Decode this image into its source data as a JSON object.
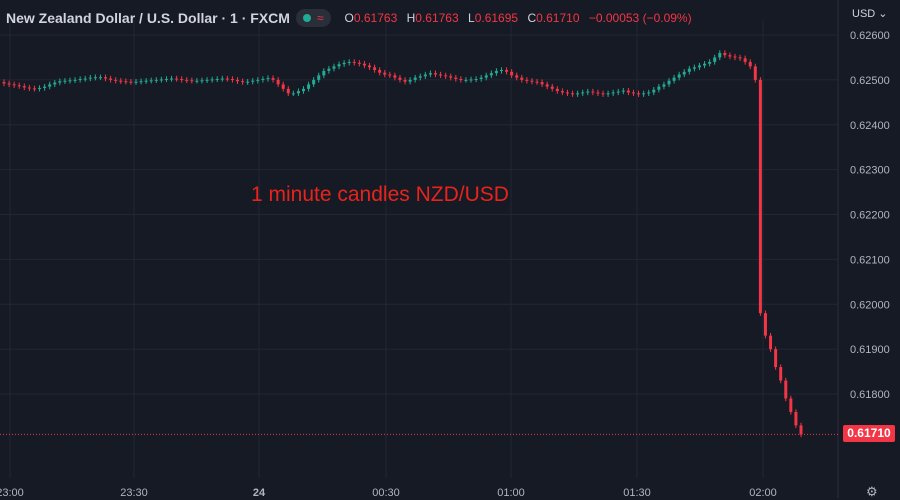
{
  "legend": {
    "title": "New Zealand Dollar / U.S. Dollar · 1 · FXCM",
    "market_status_icon": "green-dot-icon",
    "wave_icon": "≈",
    "ohlc": {
      "o_label": "O",
      "o_value": "0.61763",
      "h_label": "H",
      "h_value": "0.61763",
      "l_label": "L",
      "l_value": "0.61695",
      "c_label": "C",
      "c_value": "0.61710",
      "change": "−0.00053 (−0.09%)"
    }
  },
  "currency_selector": "USD ⌄",
  "annotation": "1 minute candles NZD/USD",
  "last_price_badge": "0.61710",
  "colors": {
    "up": "#22ab94",
    "down": "#f23645",
    "background": "#161a25",
    "annotation": "#e8231c",
    "grid": "#232733"
  },
  "chart_data": {
    "type": "candlestick",
    "interval": "1 minute",
    "symbol": "NZD/USD",
    "ylim": [
      0.617,
      0.6261
    ],
    "y_ticks": [
      "0.62600",
      "0.62500",
      "0.62400",
      "0.62300",
      "0.62200",
      "0.62100",
      "0.62000",
      "0.61900",
      "0.61800"
    ],
    "x_ticks": [
      "23:00",
      "23:30",
      "24",
      "00:30",
      "01:00",
      "01:30",
      "02:00"
    ],
    "last_price": 0.6171,
    "candles_close_path": [
      0.62492,
      0.6249,
      0.62488,
      0.62486,
      0.62483,
      0.62481,
      0.6248,
      0.62482,
      0.62485,
      0.6249,
      0.62494,
      0.62497,
      0.62498,
      0.62499,
      0.625,
      0.62502,
      0.62503,
      0.62505,
      0.62506,
      0.62506,
      0.62503,
      0.625,
      0.62498,
      0.62497,
      0.62496,
      0.62495,
      0.62496,
      0.62497,
      0.62498,
      0.62499,
      0.625,
      0.62501,
      0.62502,
      0.62503,
      0.62502,
      0.625,
      0.62499,
      0.62498,
      0.62498,
      0.62499,
      0.625,
      0.62501,
      0.62502,
      0.62503,
      0.62502,
      0.625,
      0.62497,
      0.62495,
      0.62496,
      0.62498,
      0.625,
      0.62502,
      0.62504,
      0.625,
      0.6249,
      0.6248,
      0.6247,
      0.6247,
      0.62475,
      0.6248,
      0.6249,
      0.625,
      0.6251,
      0.6252,
      0.62525,
      0.6253,
      0.62535,
      0.62538,
      0.6254,
      0.62538,
      0.62536,
      0.62532,
      0.62528,
      0.62522,
      0.62516,
      0.62512,
      0.6251,
      0.62505,
      0.625,
      0.62496,
      0.625,
      0.62505,
      0.62508,
      0.62512,
      0.62515,
      0.62512,
      0.6251,
      0.62508,
      0.62505,
      0.62502,
      0.625,
      0.625,
      0.62501,
      0.62502,
      0.62505,
      0.6251,
      0.62515,
      0.6252,
      0.62522,
      0.62518,
      0.6251,
      0.62505,
      0.625,
      0.62498,
      0.62496,
      0.62495,
      0.6249,
      0.62485,
      0.6248,
      0.62475,
      0.62472,
      0.6247,
      0.62468,
      0.6247,
      0.62472,
      0.62474,
      0.62472,
      0.6247,
      0.62468,
      0.6247,
      0.62472,
      0.62474,
      0.62476,
      0.62472,
      0.6247,
      0.62468,
      0.6247,
      0.62472,
      0.62478,
      0.62485,
      0.6249,
      0.62498,
      0.62505,
      0.62512,
      0.62518,
      0.62525,
      0.62528,
      0.62532,
      0.62536,
      0.6254,
      0.6255,
      0.6256,
      0.62555,
      0.62552,
      0.6255,
      0.62548,
      0.6254,
      0.6253,
      0.625,
      0.6198,
      0.6193,
      0.619,
      0.6186,
      0.6183,
      0.6179,
      0.6176,
      0.6173,
      0.6171
    ],
    "note": ""
  }
}
